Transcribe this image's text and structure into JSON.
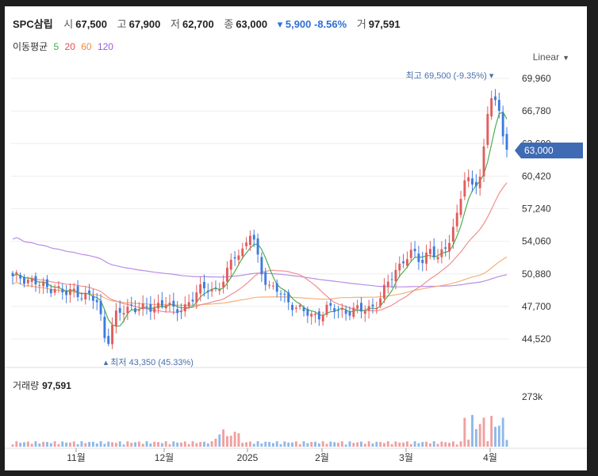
{
  "header": {
    "name": "SPC삼립",
    "open_label": "시",
    "open": "67,500",
    "high_label": "고",
    "high": "67,900",
    "low_label": "저",
    "low": "62,700",
    "close_label": "종",
    "close": "63,000",
    "change": "▾ 5,900 -8.56%",
    "volume_label": "거",
    "volume": "97,591"
  },
  "ma_legend": {
    "label": "이동평균",
    "items": [
      {
        "text": "5",
        "color": "#3bb34a"
      },
      {
        "text": "20",
        "color": "#e0504f"
      },
      {
        "text": "60",
        "color": "#f08a3b"
      },
      {
        "text": "120",
        "color": "#9b59d6"
      }
    ]
  },
  "scale_button": "Linear",
  "volume_panel": {
    "title": "거래량",
    "value": "97,591",
    "tick": "273k"
  },
  "annotations": {
    "max": "최고 69,500 (-9.35%) ▾",
    "min": "▴ 최저 43,350 (45.33%)"
  },
  "last_price_tag": "63,000",
  "chart_data": {
    "type": "candlestick",
    "yticks": [
      "69,960",
      "66,780",
      "63,600",
      "60,420",
      "57,240",
      "54,060",
      "50,880",
      "47,700",
      "44,520"
    ],
    "ytick_values": [
      69960,
      66780,
      63600,
      60420,
      57240,
      54060,
      50880,
      47700,
      44520
    ],
    "xticks": [
      "11월",
      "12월",
      "2025",
      "2월",
      "3월",
      "4월"
    ],
    "ylim": [
      42000,
      72000
    ],
    "colors": {
      "up": "#e25d5d",
      "down": "#3e7be0",
      "vol_up": "#f0a0a0",
      "vol_down": "#8fb9ea"
    },
    "close_path": [
      50400,
      50600,
      50300,
      49800,
      49500,
      49700,
      48800,
      49200,
      49000,
      48600,
      48000,
      44000,
      46700,
      47200,
      47800,
      47500,
      47300,
      47900,
      48200,
      47000,
      47600,
      48500,
      49200,
      49600,
      49300,
      50500,
      52800,
      53200,
      55000,
      51500,
      49800,
      49300,
      48300,
      47900,
      47300,
      46600,
      47000,
      47600,
      47200,
      47300,
      47400,
      47200,
      47600,
      48300,
      49800,
      51300,
      52500,
      52800,
      52000,
      53500,
      52100,
      53700,
      56200,
      60000,
      59400,
      60800,
      68500,
      66800,
      63000
    ],
    "max_value": 69500,
    "min_value": 43350,
    "last_close": 63000,
    "volume_max": 273000
  }
}
